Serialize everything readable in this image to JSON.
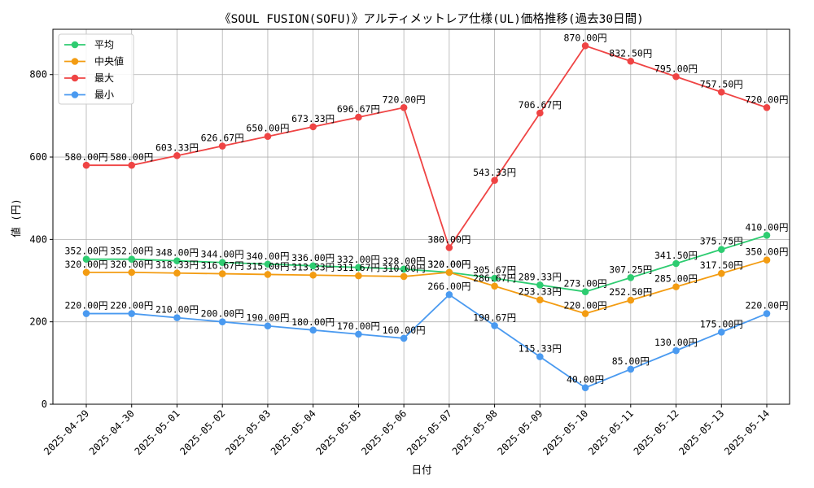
{
  "chart_data": {
    "type": "line",
    "title": "《SOUL FUSION(SOFU)》アルティメットレア仕様(UL)価格推移(過去30日間)",
    "xlabel": "日付",
    "ylabel": "値 (円)",
    "ylim": [
      0,
      910
    ],
    "yticks": [
      0,
      200,
      400,
      600,
      800
    ],
    "grid": true,
    "legend_position": "top-left",
    "categories": [
      "2025-04-29",
      "2025-04-30",
      "2025-05-01",
      "2025-05-02",
      "2025-05-03",
      "2025-05-04",
      "2025-05-05",
      "2025-05-06",
      "2025-05-07",
      "2025-05-08",
      "2025-05-09",
      "2025-05-10",
      "2025-05-11",
      "2025-05-12",
      "2025-05-13",
      "2025-05-14"
    ],
    "series": [
      {
        "name": "平均",
        "color": "#2ecc71",
        "values": [
          352,
          352,
          348,
          344,
          340,
          336,
          332,
          328,
          320,
          305.67,
          289.33,
          273,
          307.25,
          341.5,
          375.75,
          410
        ],
        "labels": [
          "352.00円",
          "352.00円",
          "348.00円",
          "344.00円",
          "340.00円",
          "336.00円",
          "332.00円",
          "328.00円",
          "320.00円",
          "305.67円",
          "289.33円",
          "273.00円",
          "307.25円",
          "341.50円",
          "375.75円",
          "410.00円"
        ]
      },
      {
        "name": "中央値",
        "color": "#f39c12",
        "values": [
          320,
          320,
          318.33,
          316.67,
          315,
          313.33,
          311.67,
          310,
          320,
          286.67,
          253.33,
          220,
          252.5,
          285,
          317.5,
          350
        ],
        "labels": [
          "320.00円",
          "320.00円",
          "318.33円",
          "316.67円",
          "315.00円",
          "313.33円",
          "311.67円",
          "310.00円",
          "320.00円",
          "286.67円",
          "253.33円",
          "220.00円",
          "252.50円",
          "285.00円",
          "317.50円",
          "350.00円"
        ]
      },
      {
        "name": "最大",
        "color": "#ef4444",
        "values": [
          580,
          580,
          603.33,
          626.67,
          650,
          673.33,
          696.67,
          720,
          380,
          543.33,
          706.67,
          870,
          832.5,
          795,
          757.5,
          720
        ],
        "labels": [
          "580.00円",
          "580.00円",
          "603.33円",
          "626.67円",
          "650.00円",
          "673.33円",
          "696.67円",
          "720.00円",
          "380.00円",
          "543.33円",
          "706.67円",
          "870.00円",
          "832.50円",
          "795.00円",
          "757.50円",
          "720.00円"
        ]
      },
      {
        "name": "最小",
        "color": "#4a9af0",
        "values": [
          220,
          220,
          210,
          200,
          190,
          180,
          170,
          160,
          266,
          190.67,
          115.33,
          40,
          85,
          130,
          175,
          220
        ],
        "labels": [
          "220.00円",
          "220.00円",
          "210.00円",
          "200.00円",
          "190.00円",
          "180.00円",
          "170.00円",
          "160.00円",
          "266.00円",
          "190.67円",
          "115.33円",
          "40.00円",
          "85.00円",
          "130.00円",
          "175.00円",
          "220.00円"
        ]
      }
    ]
  }
}
